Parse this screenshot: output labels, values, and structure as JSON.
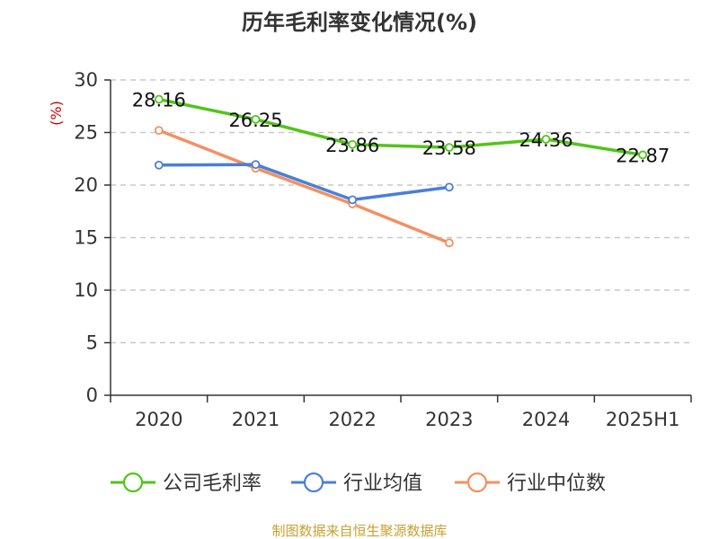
{
  "chart_data": {
    "type": "line",
    "title": "历年毛利率变化情况(%)",
    "ylabel": "(%)",
    "xlabel": "",
    "categories": [
      "2020",
      "2021",
      "2022",
      "2023",
      "2024",
      "2025H1"
    ],
    "yticks": [
      "0",
      "5",
      "10",
      "15",
      "20",
      "25",
      "30"
    ],
    "ylim": [
      0,
      30
    ],
    "grid": true,
    "legend_position": "bottom",
    "series": [
      {
        "name": "公司毛利率",
        "color": "#52c41a",
        "values": [
          28.16,
          26.25,
          23.86,
          23.58,
          24.36,
          22.87
        ],
        "labels": [
          "28.16",
          "26.25",
          "23.86",
          "23.58",
          "24.36",
          "22.87"
        ]
      },
      {
        "name": "行业均值",
        "color": "#4a7fd8",
        "values": [
          21.9,
          21.95,
          18.6,
          19.8,
          null,
          null
        ]
      },
      {
        "name": "行业中位数",
        "color": "#f39060",
        "values": [
          25.2,
          21.6,
          18.2,
          14.5,
          null,
          null
        ]
      }
    ]
  },
  "colors": {
    "ylabel": "#cc0000",
    "footer": "#c8a032",
    "axis": "#333333",
    "grid": "#c8c8c8"
  },
  "footer": "制图数据来自恒生聚源数据库"
}
